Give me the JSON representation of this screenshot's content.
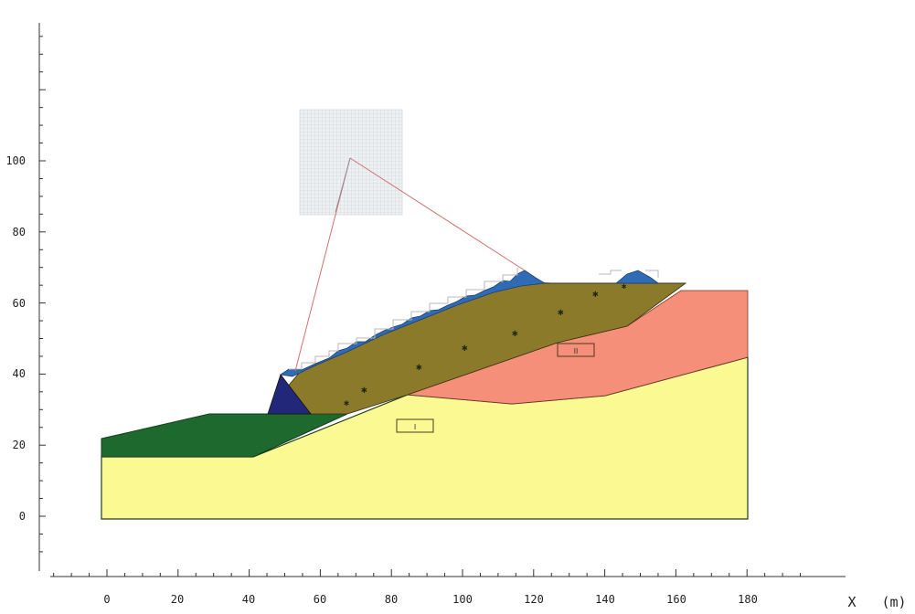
{
  "figure": {
    "x_axis": {
      "label": "X",
      "unit": "(m)",
      "ticks": [
        "0",
        "20",
        "40",
        "60",
        "80",
        "100",
        "120",
        "140",
        "160",
        "180"
      ]
    },
    "y_axis": {
      "ticks": [
        "0",
        "20",
        "40",
        "60",
        "80",
        "100"
      ]
    },
    "layer_tags": [
      "I",
      "II"
    ],
    "colors": {
      "pink_layer": "#F58F7A",
      "yellow_layer": "#FBFA92",
      "green_layer": "#1E6A2E",
      "brown_band": "#8A7A2A",
      "blue_cover": "#2F6CB5",
      "navy_wedge": "#23277A",
      "lines": "#333333",
      "slip_lines": "#D07070"
    }
  }
}
